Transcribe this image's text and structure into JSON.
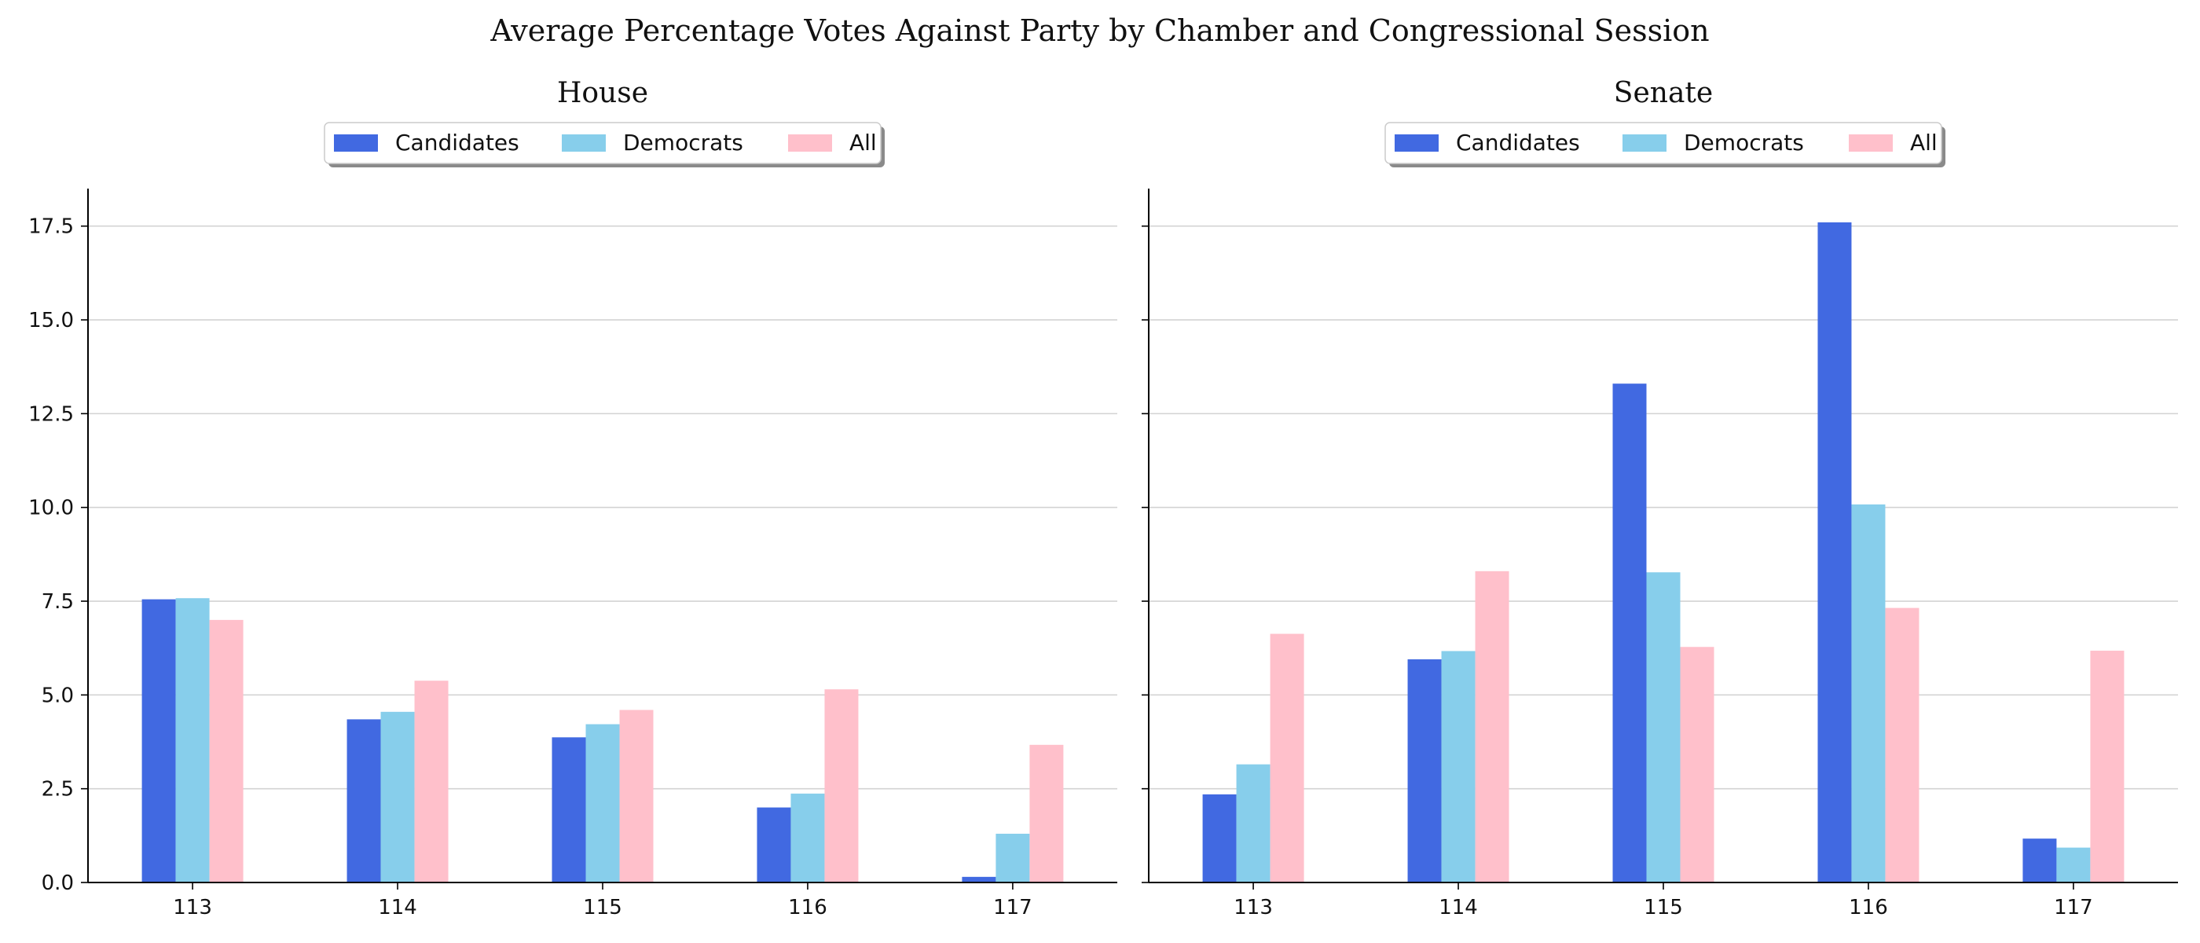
{
  "figure_title": "Average Percentage Votes Against Party by Chamber and Congressional Session",
  "colors": {
    "Candidates": "#4169E1",
    "Democrats": "#87CEEB",
    "All": "#FFC0CB",
    "grid": "#d3d3d3",
    "axis": "#000000"
  },
  "chart_data": [
    {
      "type": "bar",
      "title": "House",
      "xlabel": "",
      "ylabel": "",
      "categories": [
        "113",
        "114",
        "115",
        "116",
        "117"
      ],
      "series": [
        {
          "name": "Candidates",
          "values": [
            7.55,
            4.35,
            3.87,
            2.0,
            0.15
          ]
        },
        {
          "name": "Democrats",
          "values": [
            7.58,
            4.55,
            4.22,
            2.37,
            1.3
          ]
        },
        {
          "name": "All",
          "values": [
            7.0,
            5.38,
            4.6,
            5.15,
            3.67
          ]
        }
      ],
      "yticks": [
        "0.0",
        "2.5",
        "5.0",
        "7.5",
        "10.0",
        "12.5",
        "15.0",
        "17.5"
      ],
      "ylim": [
        0,
        18.5
      ],
      "grid": "horizontal",
      "legend": "top-center"
    },
    {
      "type": "bar",
      "title": "Senate",
      "xlabel": "",
      "ylabel": "",
      "categories": [
        "113",
        "114",
        "115",
        "116",
        "117"
      ],
      "series": [
        {
          "name": "Candidates",
          "values": [
            2.35,
            5.95,
            13.3,
            17.6,
            1.17
          ]
        },
        {
          "name": "Democrats",
          "values": [
            3.15,
            6.17,
            8.27,
            10.08,
            0.93
          ]
        },
        {
          "name": "All",
          "values": [
            6.63,
            8.3,
            6.28,
            7.32,
            6.18
          ]
        }
      ],
      "yticks": [
        "0.0",
        "2.5",
        "5.0",
        "7.5",
        "10.0",
        "12.5",
        "15.0",
        "17.5"
      ],
      "ylim": [
        0,
        18.5
      ],
      "grid": "horizontal",
      "legend": "top-center"
    }
  ]
}
